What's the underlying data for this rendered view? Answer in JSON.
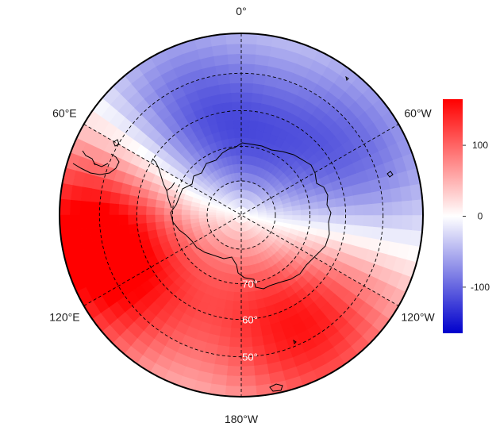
{
  "map": {
    "projection": "south-polar-stereographic",
    "longitude_labels": [
      {
        "lon": 0,
        "text": "0°"
      },
      {
        "lon": 60,
        "text": "60°E"
      },
      {
        "lon": 120,
        "text": "120°E"
      },
      {
        "lon": 180,
        "text": "180°W"
      },
      {
        "lon": -120,
        "text": "120°W"
      },
      {
        "lon": -60,
        "text": "60°W"
      }
    ],
    "latitude_labels": [
      {
        "lat": -70,
        "text": "70°"
      },
      {
        "lat": -60,
        "text": "60°"
      },
      {
        "lat": -50,
        "text": "50°"
      }
    ],
    "graticule": {
      "latitudes": [
        -80,
        -70,
        -60,
        -50
      ],
      "meridians_every_deg": 60,
      "style": "dashed"
    },
    "field_anomaly": {
      "pole": 15,
      "lobes": [
        {
          "lon": -150,
          "lat": -57,
          "amp": 175
        },
        {
          "lon": 90,
          "lat": -50,
          "amp": 150
        },
        {
          "lon": 120,
          "lat": -55,
          "amp": 120
        },
        {
          "lon": 35,
          "lat": -62,
          "amp": -135
        },
        {
          "lon": -65,
          "lat": -58,
          "amp": -105
        },
        {
          "lon": 150,
          "lat": -68,
          "amp": -50
        }
      ]
    }
  },
  "colorbar": {
    "min": -165,
    "max": 165,
    "ticks": [
      {
        "value": 100,
        "text": "100"
      },
      {
        "value": 0,
        "text": "0"
      },
      {
        "value": -100,
        "text": "-100"
      }
    ],
    "colors": {
      "low": "#0000cc",
      "mid": "#ffffff",
      "high": "#ff0000"
    }
  }
}
